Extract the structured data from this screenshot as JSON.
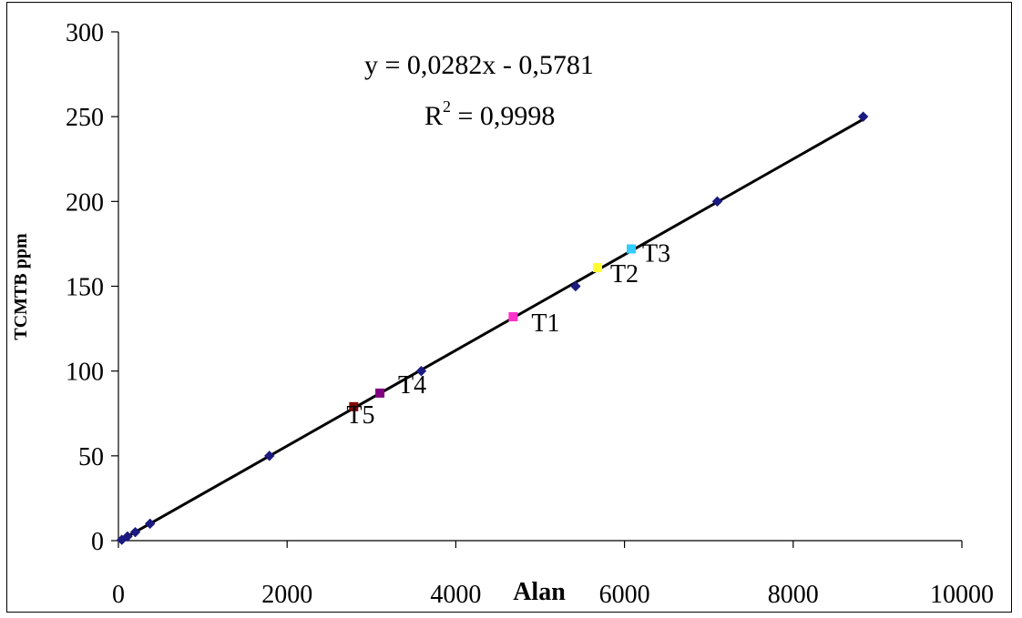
{
  "chart_data": {
    "type": "scatter",
    "xlabel": "Alan",
    "ylabel": "TCMTB ppm",
    "xlim": [
      0,
      10000
    ],
    "ylim": [
      0,
      300
    ],
    "x_ticks": [
      0,
      2000,
      4000,
      6000,
      8000,
      10000
    ],
    "y_ticks": [
      0,
      50,
      100,
      150,
      200,
      250,
      300
    ],
    "x_tick_labels": [
      "0",
      "2000",
      "4000",
      "6000",
      "8000",
      "10000"
    ],
    "y_tick_labels": [
      "0",
      "50",
      "100",
      "150",
      "200",
      "250",
      "300"
    ],
    "grid": false,
    "legend": "none",
    "series": [
      {
        "marker": "diamond",
        "color": "#1a1a80",
        "points": [
          {
            "x": 40,
            "y": 0.5
          },
          {
            "x": 108,
            "y": 2.5
          },
          {
            "x": 200,
            "y": 5
          },
          {
            "x": 375,
            "y": 10
          },
          {
            "x": 1790,
            "y": 50
          },
          {
            "x": 3590,
            "y": 100
          },
          {
            "x": 5420,
            "y": 150
          },
          {
            "x": 7100,
            "y": 200
          },
          {
            "x": 8830,
            "y": 250
          }
        ]
      },
      {
        "marker": "square",
        "points": [
          {
            "label": "T1",
            "x": 4680,
            "y": 132,
            "color": "#ff33cc"
          },
          {
            "label": "T2",
            "x": 5680,
            "y": 161,
            "color": "#ffff33"
          },
          {
            "label": "T3",
            "x": 6080,
            "y": 172,
            "color": "#33ccff"
          },
          {
            "label": "T4",
            "x": 3100,
            "y": 87,
            "color": "#800080"
          },
          {
            "label": "T5",
            "x": 2790,
            "y": 79,
            "color": "#800000"
          }
        ]
      }
    ],
    "trendline": {
      "slope": 0.0282,
      "intercept": -0.5781,
      "x_range": [
        40,
        8830
      ],
      "color": "#000000"
    },
    "annotations": {
      "equation": "y = 0,0282x - 0,5781",
      "r2_prefix": "R",
      "r2_exp": "2",
      "r2_value": " = 0,9998"
    }
  }
}
